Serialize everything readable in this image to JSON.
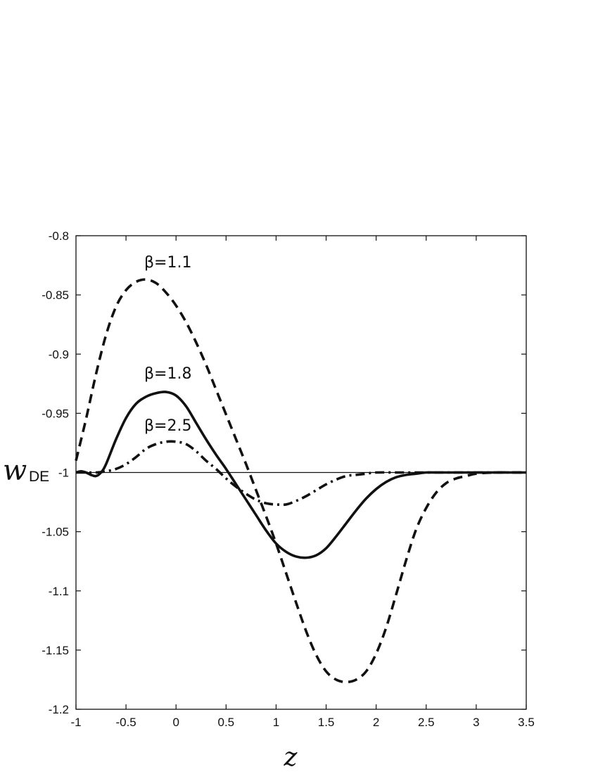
{
  "chart_data": {
    "type": "line",
    "xlabel": "z",
    "ylabel": "w",
    "ylabel_subscript": "DE",
    "xlim": [
      -1,
      3.5
    ],
    "ylim": [
      -1.2,
      -0.8
    ],
    "x_ticks": [
      -1,
      -0.5,
      0,
      0.5,
      1,
      1.5,
      2,
      2.5,
      3,
      3.5
    ],
    "x_tick_labels": [
      "-1",
      "-0.5",
      "0",
      "0.5",
      "1",
      "1.5",
      "2",
      "2.5",
      "3",
      "3.5"
    ],
    "y_ticks": [
      -0.8,
      -0.85,
      -0.9,
      -0.95,
      -1,
      -1.05,
      -1.1,
      -1.15,
      -1.2
    ],
    "y_tick_labels": [
      "-0.8",
      "-0.85",
      "-0.9",
      "-0.95",
      "-1",
      "-1.05",
      "-1.1",
      "-1.15",
      "-1.2"
    ],
    "grid": false,
    "reference_line": -1,
    "series": [
      {
        "name": "β=1.1",
        "style": "dashed",
        "x": [
          -1,
          -0.9,
          -0.8,
          -0.7,
          -0.6,
          -0.5,
          -0.4,
          -0.3,
          -0.2,
          -0.1,
          0,
          0.1,
          0.2,
          0.3,
          0.4,
          0.5,
          0.6,
          0.7,
          0.8,
          0.9,
          1,
          1.1,
          1.2,
          1.3,
          1.4,
          1.5,
          1.6,
          1.7,
          1.8,
          1.9,
          2,
          2.1,
          2.2,
          2.3,
          2.4,
          2.5,
          2.6,
          2.7,
          2.8,
          2.9,
          3,
          3.2,
          3.5
        ],
        "y": [
          -0.99,
          -0.955,
          -0.917,
          -0.884,
          -0.86,
          -0.846,
          -0.839,
          -0.837,
          -0.84,
          -0.848,
          -0.859,
          -0.873,
          -0.89,
          -0.909,
          -0.93,
          -0.951,
          -0.972,
          -0.993,
          -1.015,
          -1.037,
          -1.06,
          -1.085,
          -1.11,
          -1.134,
          -1.154,
          -1.168,
          -1.175,
          -1.177,
          -1.175,
          -1.168,
          -1.153,
          -1.131,
          -1.103,
          -1.074,
          -1.048,
          -1.03,
          -1.017,
          -1.009,
          -1.005,
          -1.003,
          -1.001,
          -1.0,
          -1.0
        ]
      },
      {
        "name": "β=1.8",
        "style": "solid",
        "x": [
          -1,
          -0.95,
          -0.9,
          -0.85,
          -0.8,
          -0.75,
          -0.7,
          -0.6,
          -0.5,
          -0.4,
          -0.3,
          -0.2,
          -0.1,
          0,
          0.1,
          0.2,
          0.3,
          0.4,
          0.5,
          0.6,
          0.7,
          0.8,
          0.9,
          1,
          1.1,
          1.2,
          1.3,
          1.4,
          1.5,
          1.6,
          1.7,
          1.8,
          1.9,
          2,
          2.1,
          2.2,
          2.3,
          2.4,
          2.5,
          2.6,
          2.8,
          3,
          3.5
        ],
        "y": [
          -1.0,
          -0.999,
          -1.0,
          -1.002,
          -1.003,
          -1.0,
          -0.993,
          -0.972,
          -0.954,
          -0.942,
          -0.936,
          -0.933,
          -0.932,
          -0.935,
          -0.944,
          -0.958,
          -0.972,
          -0.985,
          -0.997,
          -1.01,
          -1.023,
          -1.036,
          -1.049,
          -1.06,
          -1.067,
          -1.071,
          -1.072,
          -1.07,
          -1.064,
          -1.054,
          -1.043,
          -1.032,
          -1.022,
          -1.014,
          -1.008,
          -1.004,
          -1.002,
          -1.001,
          -1.0,
          -1.0,
          -1.0,
          -1.0,
          -1.0
        ]
      },
      {
        "name": "β=2.5",
        "style": "dash-dot",
        "x": [
          -1,
          -0.9,
          -0.8,
          -0.7,
          -0.6,
          -0.5,
          -0.4,
          -0.3,
          -0.2,
          -0.1,
          0,
          0.1,
          0.2,
          0.3,
          0.4,
          0.5,
          0.6,
          0.7,
          0.8,
          0.9,
          1,
          1.1,
          1.2,
          1.3,
          1.4,
          1.5,
          1.6,
          1.7,
          1.8,
          1.9,
          2,
          2.2,
          2.4,
          2.6,
          2.8,
          3,
          3.5
        ],
        "y": [
          -1.0,
          -1.0,
          -1.0,
          -0.999,
          -0.997,
          -0.993,
          -0.987,
          -0.98,
          -0.976,
          -0.974,
          -0.974,
          -0.976,
          -0.982,
          -0.99,
          -0.997,
          -1.005,
          -1.012,
          -1.018,
          -1.023,
          -1.026,
          -1.027,
          -1.027,
          -1.024,
          -1.02,
          -1.015,
          -1.01,
          -1.006,
          -1.003,
          -1.002,
          -1.001,
          -1.0,
          -1.0,
          -1.0,
          -1.0,
          -1.0,
          -1.0,
          -1.0
        ]
      }
    ]
  }
}
